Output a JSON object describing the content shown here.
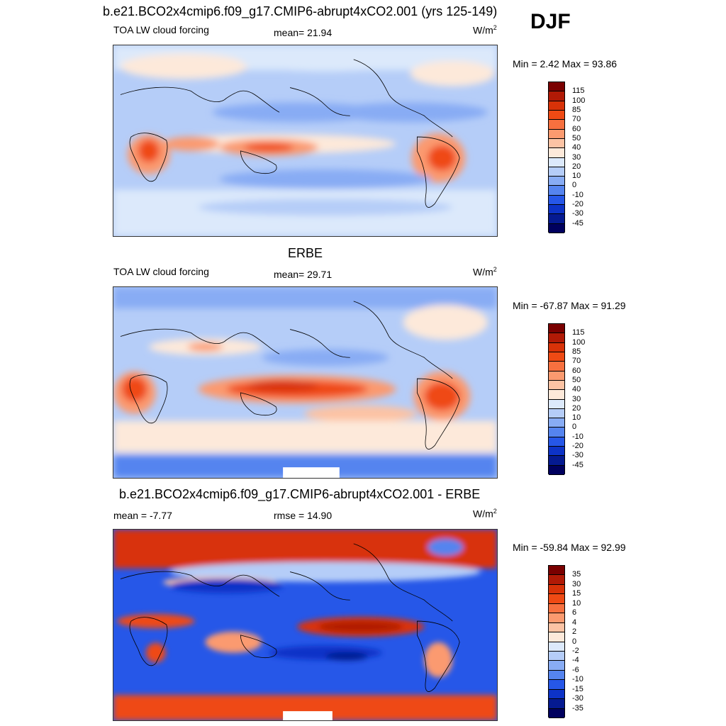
{
  "season": "DJF",
  "panels": [
    {
      "id": "model",
      "title": "b.e21.BCO2x4cmip6.f09_g17.CMIP6-abrupt4xCO2.001 (yrs 125-149)",
      "left_label": "TOA LW cloud forcing",
      "center_label": "mean=  21.94",
      "unit": "W/m",
      "unit_sup": "2",
      "minmax": "Min =   2.42 Max =  93.86",
      "colorbar": {
        "labels": [
          "115",
          "100",
          "85",
          "70",
          "60",
          "50",
          "40",
          "30",
          "20",
          "10",
          "0",
          "-10",
          "-20",
          "-30",
          "-45"
        ],
        "colors": [
          "#7a0000",
          "#b11a06",
          "#d83208",
          "#ef4a14",
          "#f7703f",
          "#fb9a6f",
          "#fcc3a4",
          "#fde9da",
          "#dce9fb",
          "#b5cdf8",
          "#88acf4",
          "#5584ef",
          "#2657e8",
          "#0d33c7",
          "#051a91",
          "#00005e"
        ]
      }
    },
    {
      "id": "obs",
      "title": "ERBE",
      "left_label": "TOA LW cloud forcing",
      "center_label": "mean=  29.71",
      "unit": "W/m",
      "unit_sup": "2",
      "minmax": "Min = -67.87 Max =  91.29",
      "colorbar": {
        "labels": [
          "115",
          "100",
          "85",
          "70",
          "60",
          "50",
          "40",
          "30",
          "20",
          "10",
          "0",
          "-10",
          "-20",
          "-30",
          "-45"
        ],
        "colors": [
          "#7a0000",
          "#b11a06",
          "#d83208",
          "#ef4a14",
          "#f7703f",
          "#fb9a6f",
          "#fcc3a4",
          "#fde9da",
          "#dce9fb",
          "#b5cdf8",
          "#88acf4",
          "#5584ef",
          "#2657e8",
          "#0d33c7",
          "#051a91",
          "#00005e"
        ]
      }
    },
    {
      "id": "diff",
      "title": "b.e21.BCO2x4cmip6.f09_g17.CMIP6-abrupt4xCO2.001 - ERBE",
      "left_label": "mean =  -7.77",
      "center_label": "rmse =  14.90",
      "unit": "W/m",
      "unit_sup": "2",
      "minmax": "Min = -59.84 Max =  92.99",
      "colorbar": {
        "labels": [
          "35",
          "30",
          "15",
          "10",
          "6",
          "4",
          "2",
          "0",
          "-2",
          "-4",
          "-6",
          "-10",
          "-15",
          "-30",
          "-35"
        ],
        "colors": [
          "#7a0000",
          "#b11a06",
          "#d83208",
          "#ef4a14",
          "#f7703f",
          "#fb9a6f",
          "#fcc3a4",
          "#fde9da",
          "#dce9fb",
          "#b5cdf8",
          "#88acf4",
          "#5584ef",
          "#2657e8",
          "#0d33c7",
          "#051a91",
          "#00005e"
        ]
      }
    }
  ]
}
